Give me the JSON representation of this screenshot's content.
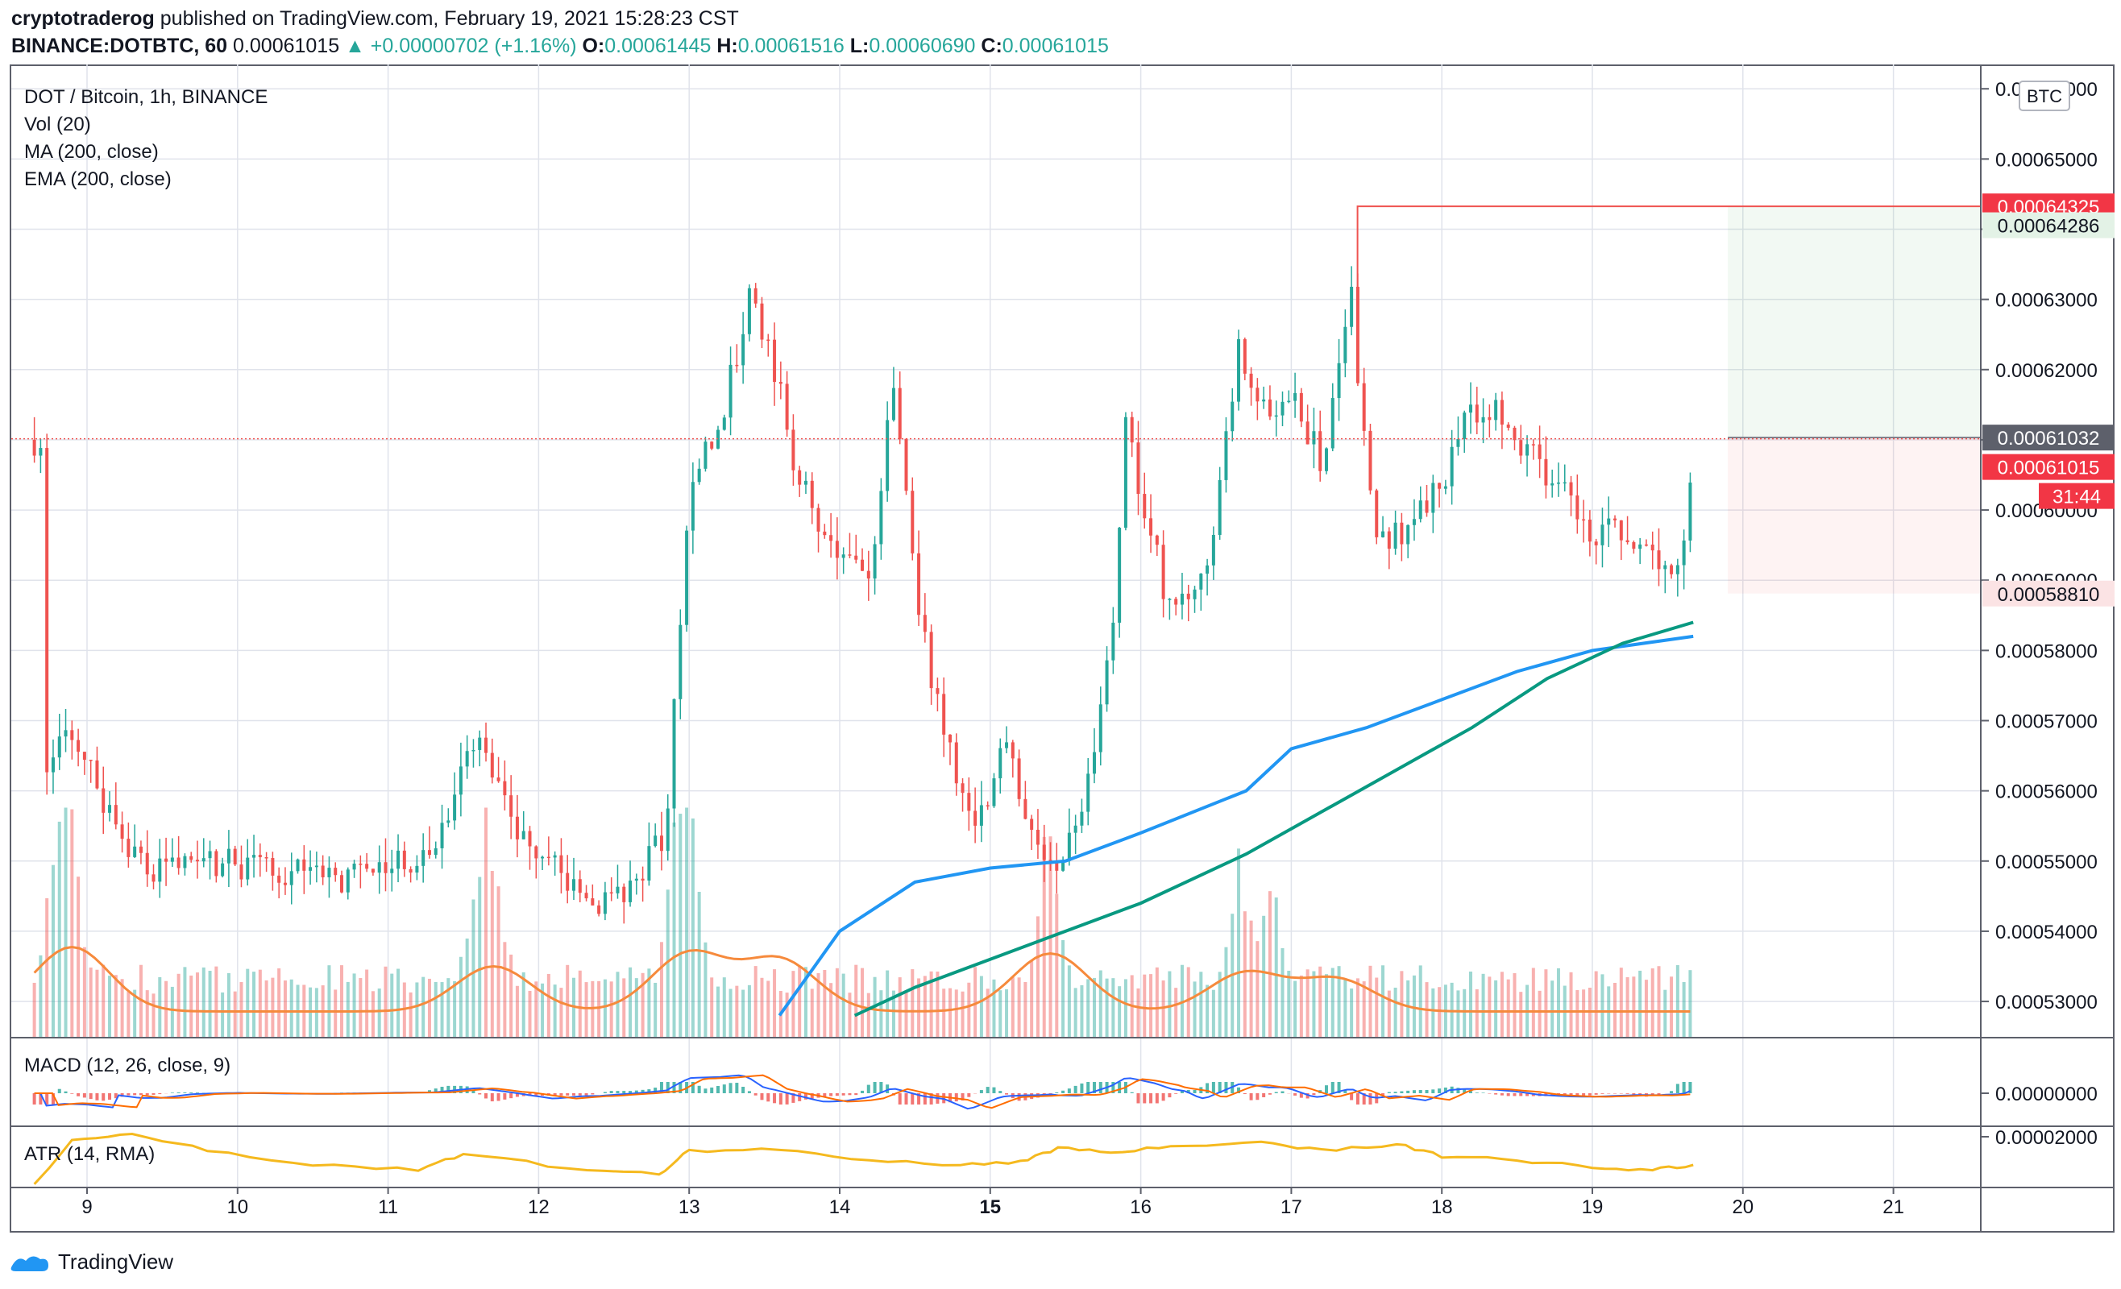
{
  "header": {
    "author": "cryptotraderog",
    "published_text": "published on TradingView.com, February 19, 2021 15:28:23 CST",
    "symbol": "BINANCE:DOTBTC, 60",
    "last": "0.00061015",
    "change": "▲ +0.00000702 (+1.16%)",
    "o_label": "O:",
    "o_value": "0.00061445",
    "h_label": "H:",
    "h_value": "0.00061516",
    "l_label": "L:",
    "l_value": "0.00060690",
    "c_label": "C:",
    "c_value": "0.00061015"
  },
  "legend": {
    "main": "DOT / Bitcoin, 1h, BINANCE",
    "vol": "Vol (20)",
    "ma": "MA (200, close)",
    "ema": "EMA (200, close)",
    "macd": "MACD (12, 26, close, 9)",
    "atr": "ATR (14, RMA)"
  },
  "price_axis": {
    "currency": "BTC",
    "ticks": [
      "0.00066000",
      "0.00065000",
      "0.00064000",
      "0.00063000",
      "0.00062000",
      "0.00061000",
      "0.00060000",
      "0.00059000",
      "0.00058000",
      "0.00057000",
      "0.00056000",
      "0.00055000",
      "0.00054000",
      "0.00053000"
    ],
    "macd_tick": "0.00000000",
    "atr_tick": "0.00002000"
  },
  "labels": {
    "target_price": "0.00064325",
    "target_green": "0.00064286",
    "entry_price": "0.00061032",
    "last_price": "0.00061015",
    "countdown": "31:44",
    "stop_price": "0.00058810"
  },
  "time_axis": [
    "9",
    "10",
    "11",
    "12",
    "13",
    "14",
    "15",
    "16",
    "17",
    "18",
    "19",
    "20",
    "21"
  ],
  "footer": {
    "brand": "TradingView"
  },
  "colors": {
    "up": "#26a69a",
    "down": "#ef5350",
    "ma": "#2196f3",
    "ema": "#089981",
    "vol_ma": "#f68a3c",
    "atr": "#f5b91e",
    "macd": "#2962ff",
    "signal": "#ff6d00"
  },
  "chart_data": {
    "type": "candlestick",
    "title": "DOT / Bitcoin, 1h, BINANCE",
    "ylim": [
      0.000528,
      0.000661
    ],
    "x": [
      "9",
      "10",
      "11",
      "12",
      "13",
      "14",
      "15",
      "16",
      "17",
      "18",
      "19",
      "20",
      "21"
    ],
    "close_path": [
      [
        8.7,
        0.00056
      ],
      [
        8.85,
        0.000569
      ],
      [
        9.0,
        0.000566
      ],
      [
        9.2,
        0.000553
      ],
      [
        9.5,
        0.000548
      ],
      [
        9.8,
        0.00055
      ],
      [
        10.2,
        0.000549
      ],
      [
        10.6,
        0.000547
      ],
      [
        11.0,
        0.000549
      ],
      [
        11.3,
        0.000551
      ],
      [
        11.6,
        0.00057
      ],
      [
        11.8,
        0.000556
      ],
      [
        12.0,
        0.000551
      ],
      [
        12.4,
        0.000543
      ],
      [
        12.7,
        0.000549
      ],
      [
        12.85,
        0.000555
      ],
      [
        13.0,
        0.000604
      ],
      [
        13.2,
        0.000612
      ],
      [
        13.4,
        0.00063
      ],
      [
        13.55,
        0.000622
      ],
      [
        13.7,
        0.000606
      ],
      [
        13.85,
        0.000598
      ],
      [
        14.0,
        0.000594
      ],
      [
        14.2,
        0.000591
      ],
      [
        14.35,
        0.000618
      ],
      [
        14.55,
        0.000582
      ],
      [
        14.75,
        0.000564
      ],
      [
        14.9,
        0.000555
      ],
      [
        15.1,
        0.000566
      ],
      [
        15.3,
        0.000553
      ],
      [
        15.45,
        0.00055
      ],
      [
        15.6,
        0.000556
      ],
      [
        15.8,
        0.00058
      ],
      [
        15.9,
        0.000611
      ],
      [
        16.2,
        0.000585
      ],
      [
        16.45,
        0.000592
      ],
      [
        16.65,
        0.000624
      ],
      [
        16.85,
        0.000612
      ],
      [
        17.0,
        0.000616
      ],
      [
        17.2,
        0.000607
      ],
      [
        17.4,
        0.00063
      ],
      [
        17.55,
        0.000595
      ],
      [
        17.75,
        0.000597
      ],
      [
        18.0,
        0.000604
      ],
      [
        18.15,
        0.000613
      ],
      [
        18.35,
        0.000614
      ],
      [
        18.6,
        0.000608
      ],
      [
        18.8,
        0.000603
      ],
      [
        19.0,
        0.000597
      ],
      [
        19.3,
        0.000596
      ],
      [
        19.45,
        0.000591
      ],
      [
        19.6,
        0.000593
      ],
      [
        19.67,
        0.00061
      ]
    ],
    "series": [
      {
        "name": "MA (200, close)",
        "points": [
          [
            13.6,
            0.000528
          ],
          [
            14.0,
            0.00054
          ],
          [
            14.5,
            0.000547
          ],
          [
            15.0,
            0.000549
          ],
          [
            15.5,
            0.00055
          ],
          [
            16.0,
            0.000554
          ],
          [
            16.7,
            0.00056
          ],
          [
            17.0,
            0.000566
          ],
          [
            17.5,
            0.000569
          ],
          [
            18.0,
            0.000573
          ],
          [
            18.5,
            0.000577
          ],
          [
            19.0,
            0.00058
          ],
          [
            19.67,
            0.000582
          ]
        ]
      },
      {
        "name": "EMA (200, close)",
        "points": [
          [
            14.1,
            0.000528
          ],
          [
            14.5,
            0.000532
          ],
          [
            15.0,
            0.000536
          ],
          [
            15.5,
            0.00054
          ],
          [
            16.0,
            0.000544
          ],
          [
            16.7,
            0.000551
          ],
          [
            17.2,
            0.000557
          ],
          [
            17.7,
            0.000563
          ],
          [
            18.2,
            0.000569
          ],
          [
            18.7,
            0.000576
          ],
          [
            19.2,
            0.000581
          ],
          [
            19.67,
            0.000584
          ]
        ]
      }
    ],
    "position": {
      "entry": 0.00061032,
      "target": 0.00064325,
      "stop": 0.0005881,
      "start": 19.9
    }
  }
}
